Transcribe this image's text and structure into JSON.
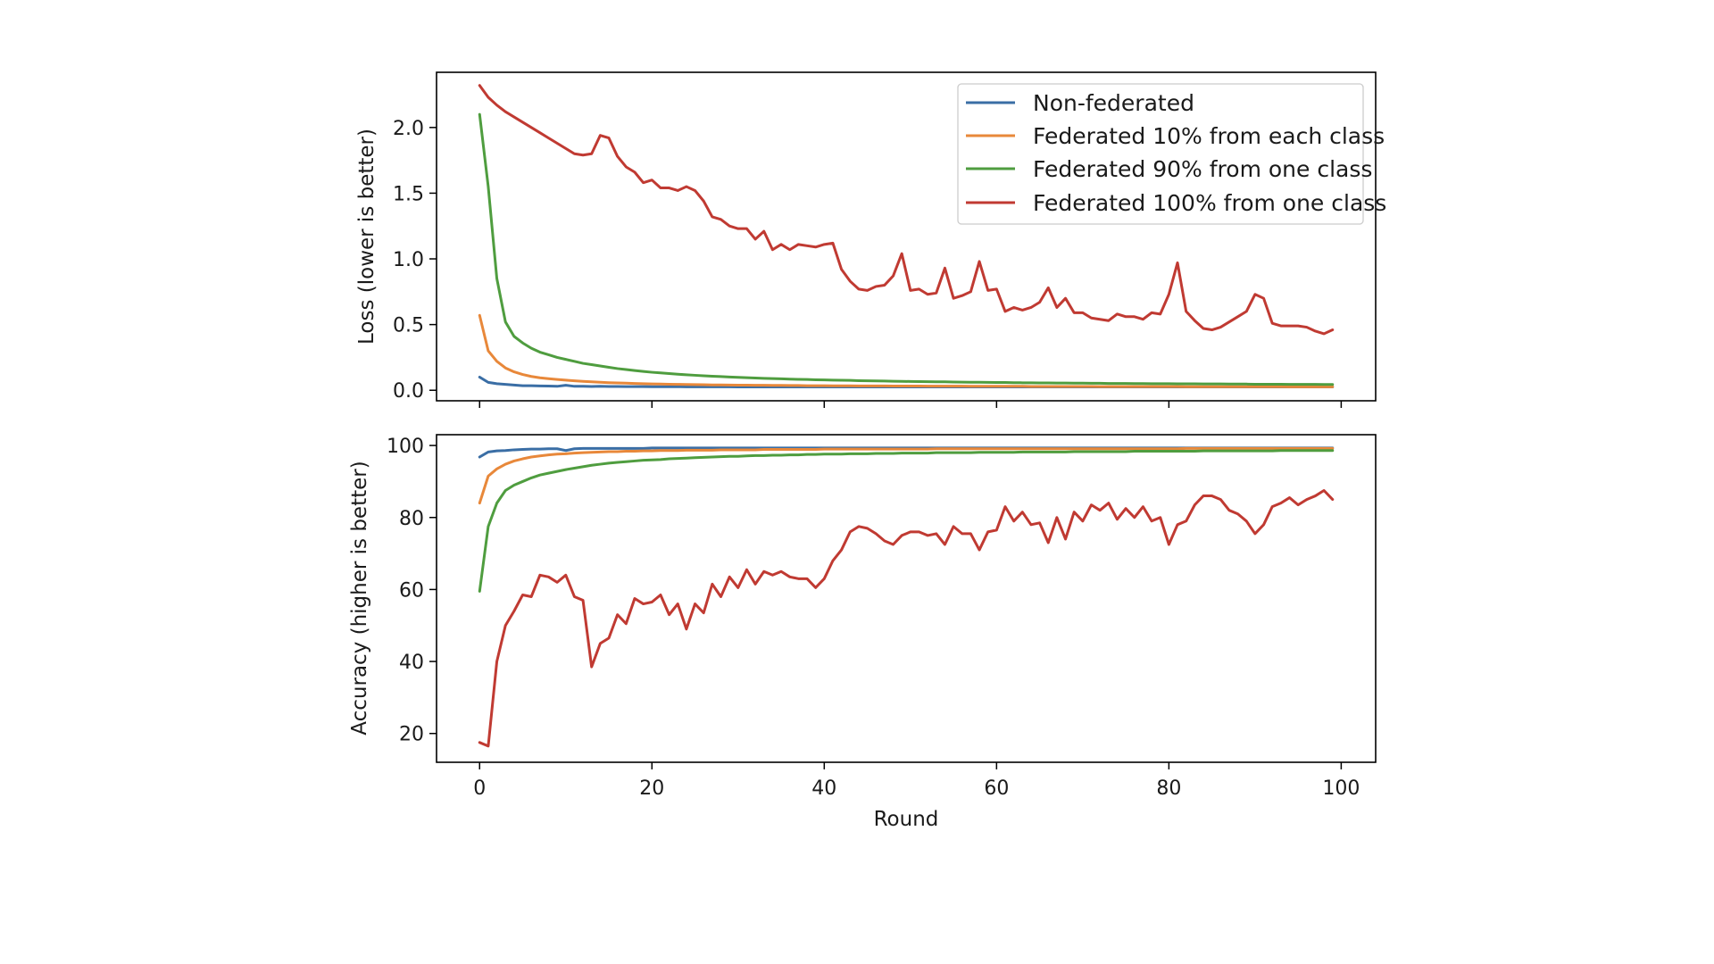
{
  "chart_data": [
    {
      "type": "line",
      "title": "",
      "xlabel": "",
      "ylabel": "Loss (lower is better)",
      "xlim": [
        -5,
        104
      ],
      "ylim": [
        -0.08,
        2.42
      ],
      "xticks": [
        0,
        20,
        40,
        60,
        80,
        100
      ],
      "yticks": [
        0.0,
        0.5,
        1.0,
        1.5,
        2.0
      ],
      "ytick_labels": [
        "0.0",
        "0.5",
        "1.0",
        "1.5",
        "2.0"
      ],
      "show_xtick_labels": false,
      "grid": false,
      "legend": {
        "placement": "top-right",
        "entries": [
          "Non-federated",
          "Federated 10% from each class",
          "Federated 90% from one class",
          "Federated 100% from one class"
        ]
      },
      "x": [
        0,
        1,
        2,
        3,
        4,
        5,
        6,
        7,
        8,
        9,
        10,
        11,
        12,
        13,
        14,
        15,
        16,
        17,
        18,
        19,
        20,
        21,
        22,
        23,
        24,
        25,
        26,
        27,
        28,
        29,
        30,
        31,
        32,
        33,
        34,
        35,
        36,
        37,
        38,
        39,
        40,
        41,
        42,
        43,
        44,
        45,
        46,
        47,
        48,
        49,
        50,
        51,
        52,
        53,
        54,
        55,
        56,
        57,
        58,
        59,
        60,
        61,
        62,
        63,
        64,
        65,
        66,
        67,
        68,
        69,
        70,
        71,
        72,
        73,
        74,
        75,
        76,
        77,
        78,
        79,
        80,
        81,
        82,
        83,
        84,
        85,
        86,
        87,
        88,
        89,
        90,
        91,
        92,
        93,
        94,
        95,
        96,
        97,
        98,
        99
      ],
      "series": [
        {
          "name": "Non-federated",
          "color": "#3a6ea5",
          "values": [
            0.1,
            0.06,
            0.05,
            0.045,
            0.04,
            0.035,
            0.035,
            0.033,
            0.032,
            0.03,
            0.038,
            0.03,
            0.03,
            0.029,
            0.03,
            0.029,
            0.029,
            0.028,
            0.028,
            0.028,
            0.027,
            0.027,
            0.027,
            0.027,
            0.026,
            0.026,
            0.026,
            0.026,
            0.026,
            0.026,
            0.025,
            0.025,
            0.025,
            0.025,
            0.025,
            0.025,
            0.025,
            0.025,
            0.025,
            0.025,
            0.025,
            0.025,
            0.025,
            0.025,
            0.025,
            0.025,
            0.025,
            0.025,
            0.025,
            0.025,
            0.025,
            0.025,
            0.025,
            0.025,
            0.025,
            0.025,
            0.025,
            0.025,
            0.025,
            0.025,
            0.025,
            0.025,
            0.025,
            0.025,
            0.025,
            0.025,
            0.025,
            0.025,
            0.025,
            0.025,
            0.025,
            0.025,
            0.025,
            0.025,
            0.025,
            0.025,
            0.025,
            0.025,
            0.025,
            0.025,
            0.025,
            0.025,
            0.025,
            0.025,
            0.025,
            0.025,
            0.025,
            0.025,
            0.025,
            0.025,
            0.025,
            0.025,
            0.025,
            0.025,
            0.025,
            0.025,
            0.025,
            0.025,
            0.025,
            0.025
          ]
        },
        {
          "name": "Federated 10% from each class",
          "color": "#e8883a",
          "values": [
            0.57,
            0.3,
            0.22,
            0.17,
            0.14,
            0.12,
            0.105,
            0.095,
            0.088,
            0.082,
            0.077,
            0.072,
            0.068,
            0.064,
            0.061,
            0.058,
            0.056,
            0.054,
            0.052,
            0.05,
            0.048,
            0.047,
            0.046,
            0.045,
            0.044,
            0.043,
            0.042,
            0.041,
            0.041,
            0.04,
            0.039,
            0.039,
            0.038,
            0.038,
            0.037,
            0.037,
            0.036,
            0.036,
            0.035,
            0.035,
            0.035,
            0.034,
            0.034,
            0.034,
            0.033,
            0.033,
            0.033,
            0.033,
            0.032,
            0.032,
            0.032,
            0.032,
            0.031,
            0.031,
            0.031,
            0.031,
            0.031,
            0.03,
            0.03,
            0.03,
            0.03,
            0.03,
            0.03,
            0.03,
            0.029,
            0.029,
            0.029,
            0.029,
            0.029,
            0.029,
            0.029,
            0.029,
            0.028,
            0.028,
            0.028,
            0.028,
            0.028,
            0.028,
            0.028,
            0.028,
            0.028,
            0.028,
            0.027,
            0.027,
            0.027,
            0.027,
            0.027,
            0.027,
            0.027,
            0.027,
            0.027,
            0.027,
            0.027,
            0.027,
            0.026,
            0.026,
            0.026,
            0.026,
            0.026,
            0.026
          ]
        },
        {
          "name": "Federated 90% from one class",
          "color": "#4f9d3f",
          "values": [
            2.1,
            1.55,
            0.85,
            0.52,
            0.41,
            0.36,
            0.32,
            0.29,
            0.27,
            0.25,
            0.235,
            0.22,
            0.205,
            0.195,
            0.185,
            0.175,
            0.165,
            0.158,
            0.15,
            0.143,
            0.137,
            0.132,
            0.127,
            0.122,
            0.118,
            0.114,
            0.11,
            0.107,
            0.104,
            0.101,
            0.098,
            0.096,
            0.093,
            0.091,
            0.089,
            0.087,
            0.085,
            0.083,
            0.082,
            0.08,
            0.079,
            0.077,
            0.076,
            0.075,
            0.073,
            0.072,
            0.071,
            0.07,
            0.069,
            0.068,
            0.067,
            0.066,
            0.065,
            0.064,
            0.064,
            0.063,
            0.062,
            0.061,
            0.061,
            0.06,
            0.059,
            0.059,
            0.058,
            0.057,
            0.057,
            0.056,
            0.056,
            0.055,
            0.055,
            0.054,
            0.054,
            0.053,
            0.053,
            0.052,
            0.052,
            0.052,
            0.051,
            0.051,
            0.05,
            0.05,
            0.05,
            0.049,
            0.049,
            0.049,
            0.048,
            0.048,
            0.048,
            0.047,
            0.047,
            0.047,
            0.046,
            0.046,
            0.046,
            0.046,
            0.045,
            0.045,
            0.045,
            0.045,
            0.044,
            0.044
          ]
        },
        {
          "name": "Federated 100% from one class",
          "color": "#c03a32",
          "values": [
            2.32,
            2.23,
            2.17,
            2.12,
            2.08,
            2.04,
            2.0,
            1.96,
            1.92,
            1.88,
            1.84,
            1.8,
            1.79,
            1.8,
            1.94,
            1.92,
            1.78,
            1.7,
            1.66,
            1.58,
            1.6,
            1.54,
            1.54,
            1.52,
            1.55,
            1.52,
            1.44,
            1.32,
            1.3,
            1.25,
            1.23,
            1.23,
            1.15,
            1.21,
            1.07,
            1.11,
            1.07,
            1.11,
            1.1,
            1.09,
            1.11,
            1.12,
            0.92,
            0.83,
            0.77,
            0.76,
            0.79,
            0.8,
            0.87,
            1.04,
            0.76,
            0.77,
            0.73,
            0.74,
            0.93,
            0.7,
            0.72,
            0.75,
            0.98,
            0.76,
            0.77,
            0.6,
            0.63,
            0.61,
            0.63,
            0.67,
            0.78,
            0.63,
            0.7,
            0.59,
            0.59,
            0.55,
            0.54,
            0.53,
            0.58,
            0.56,
            0.56,
            0.54,
            0.59,
            0.58,
            0.73,
            0.97,
            0.6,
            0.53,
            0.47,
            0.46,
            0.48,
            0.52,
            0.56,
            0.6,
            0.73,
            0.7,
            0.51,
            0.49,
            0.49,
            0.49,
            0.48,
            0.45,
            0.43,
            0.46
          ]
        }
      ]
    },
    {
      "type": "line",
      "title": "",
      "xlabel": "Round",
      "ylabel": "Accuracy (higher is better)",
      "xlim": [
        -5,
        104
      ],
      "ylim": [
        12,
        103
      ],
      "xticks": [
        0,
        20,
        40,
        60,
        80,
        100
      ],
      "xtick_labels": [
        "0",
        "20",
        "40",
        "60",
        "80",
        "100"
      ],
      "yticks": [
        20,
        40,
        60,
        80,
        100
      ],
      "ytick_labels": [
        "20",
        "40",
        "60",
        "80",
        "100"
      ],
      "grid": false,
      "x": [
        0,
        1,
        2,
        3,
        4,
        5,
        6,
        7,
        8,
        9,
        10,
        11,
        12,
        13,
        14,
        15,
        16,
        17,
        18,
        19,
        20,
        21,
        22,
        23,
        24,
        25,
        26,
        27,
        28,
        29,
        30,
        31,
        32,
        33,
        34,
        35,
        36,
        37,
        38,
        39,
        40,
        41,
        42,
        43,
        44,
        45,
        46,
        47,
        48,
        49,
        50,
        51,
        52,
        53,
        54,
        55,
        56,
        57,
        58,
        59,
        60,
        61,
        62,
        63,
        64,
        65,
        66,
        67,
        68,
        69,
        70,
        71,
        72,
        73,
        74,
        75,
        76,
        77,
        78,
        79,
        80,
        81,
        82,
        83,
        84,
        85,
        86,
        87,
        88,
        89,
        90,
        91,
        92,
        93,
        94,
        95,
        96,
        97,
        98,
        99
      ],
      "series": [
        {
          "name": "Non-federated",
          "color": "#3a6ea5",
          "values": [
            96.8,
            98.2,
            98.5,
            98.6,
            98.8,
            98.9,
            99.0,
            99.0,
            99.1,
            99.1,
            98.6,
            99.1,
            99.2,
            99.2,
            99.2,
            99.2,
            99.2,
            99.2,
            99.2,
            99.2,
            99.3,
            99.3,
            99.3,
            99.3,
            99.3,
            99.3,
            99.3,
            99.3,
            99.3,
            99.3,
            99.3,
            99.3,
            99.3,
            99.3,
            99.3,
            99.3,
            99.3,
            99.3,
            99.3,
            99.3,
            99.3,
            99.3,
            99.3,
            99.3,
            99.3,
            99.3,
            99.3,
            99.3,
            99.3,
            99.3,
            99.3,
            99.3,
            99.3,
            99.3,
            99.3,
            99.3,
            99.3,
            99.3,
            99.3,
            99.3,
            99.3,
            99.3,
            99.3,
            99.3,
            99.3,
            99.3,
            99.3,
            99.3,
            99.3,
            99.3,
            99.3,
            99.3,
            99.3,
            99.3,
            99.3,
            99.3,
            99.3,
            99.3,
            99.3,
            99.3,
            99.3,
            99.3,
            99.3,
            99.3,
            99.3,
            99.3,
            99.3,
            99.3,
            99.3,
            99.3,
            99.3,
            99.3,
            99.3,
            99.3,
            99.3,
            99.3,
            99.3,
            99.3,
            99.3,
            99.3
          ]
        },
        {
          "name": "Federated 10% from each class",
          "color": "#e8883a",
          "values": [
            84.0,
            91.5,
            93.5,
            94.8,
            95.7,
            96.3,
            96.8,
            97.1,
            97.4,
            97.6,
            97.7,
            97.9,
            98.0,
            98.1,
            98.2,
            98.3,
            98.3,
            98.4,
            98.4,
            98.5,
            98.5,
            98.6,
            98.6,
            98.6,
            98.7,
            98.7,
            98.7,
            98.7,
            98.8,
            98.8,
            98.8,
            98.8,
            98.8,
            98.9,
            98.9,
            98.9,
            98.9,
            98.9,
            98.9,
            98.9,
            99.0,
            99.0,
            99.0,
            99.0,
            99.0,
            99.0,
            99.0,
            99.0,
            99.0,
            99.0,
            99.0,
            99.0,
            99.0,
            99.1,
            99.1,
            99.1,
            99.1,
            99.1,
            99.1,
            99.1,
            99.1,
            99.1,
            99.1,
            99.1,
            99.1,
            99.1,
            99.1,
            99.1,
            99.1,
            99.1,
            99.1,
            99.1,
            99.1,
            99.1,
            99.1,
            99.1,
            99.1,
            99.1,
            99.1,
            99.1,
            99.1,
            99.1,
            99.2,
            99.2,
            99.2,
            99.2,
            99.2,
            99.2,
            99.2,
            99.2,
            99.2,
            99.2,
            99.2,
            99.2,
            99.2,
            99.2,
            99.2,
            99.2,
            99.2,
            99.2
          ]
        },
        {
          "name": "Federated 90% from one class",
          "color": "#4f9d3f",
          "values": [
            59.5,
            77.5,
            84.0,
            87.5,
            89.0,
            90.0,
            91.0,
            91.8,
            92.3,
            92.8,
            93.3,
            93.7,
            94.1,
            94.5,
            94.8,
            95.1,
            95.3,
            95.5,
            95.7,
            95.9,
            96.0,
            96.1,
            96.3,
            96.4,
            96.5,
            96.6,
            96.7,
            96.8,
            96.9,
            97.0,
            97.0,
            97.1,
            97.2,
            97.2,
            97.3,
            97.3,
            97.4,
            97.4,
            97.5,
            97.5,
            97.6,
            97.6,
            97.6,
            97.7,
            97.7,
            97.7,
            97.8,
            97.8,
            97.8,
            97.9,
            97.9,
            97.9,
            97.9,
            98.0,
            98.0,
            98.0,
            98.0,
            98.0,
            98.1,
            98.1,
            98.1,
            98.1,
            98.1,
            98.2,
            98.2,
            98.2,
            98.2,
            98.2,
            98.2,
            98.3,
            98.3,
            98.3,
            98.3,
            98.3,
            98.3,
            98.3,
            98.4,
            98.4,
            98.4,
            98.4,
            98.4,
            98.4,
            98.4,
            98.4,
            98.5,
            98.5,
            98.5,
            98.5,
            98.5,
            98.5,
            98.5,
            98.5,
            98.5,
            98.6,
            98.6,
            98.6,
            98.6,
            98.6,
            98.6,
            98.6
          ]
        },
        {
          "name": "Federated 100% from one class",
          "color": "#c03a32",
          "values": [
            17.5,
            16.5,
            40.0,
            50.0,
            54.0,
            58.5,
            58.0,
            64.0,
            63.5,
            62.0,
            64.0,
            58.0,
            57.0,
            38.5,
            45.0,
            46.5,
            53.0,
            50.5,
            57.5,
            56.0,
            56.5,
            58.5,
            53.0,
            56.0,
            49.0,
            56.0,
            53.5,
            61.5,
            58.0,
            63.5,
            60.5,
            65.5,
            61.5,
            65.0,
            64.0,
            65.0,
            63.5,
            63.0,
            63.0,
            60.5,
            63.0,
            68.0,
            71.0,
            76.0,
            77.5,
            77.0,
            75.5,
            73.5,
            72.5,
            75.0,
            76.0,
            76.0,
            75.0,
            75.5,
            72.5,
            77.5,
            75.5,
            75.5,
            71.0,
            76.0,
            76.5,
            83.0,
            79.0,
            81.5,
            78.0,
            78.5,
            73.0,
            80.0,
            74.0,
            81.5,
            79.0,
            83.5,
            82.0,
            84.0,
            79.5,
            82.5,
            80.0,
            83.0,
            79.0,
            80.0,
            72.5,
            78.0,
            79.0,
            83.5,
            86.0,
            86.0,
            85.0,
            82.0,
            81.0,
            79.0,
            75.5,
            78.0,
            83.0,
            84.0,
            85.5,
            83.5,
            85.0,
            86.0,
            87.5,
            85.0
          ]
        }
      ]
    }
  ]
}
